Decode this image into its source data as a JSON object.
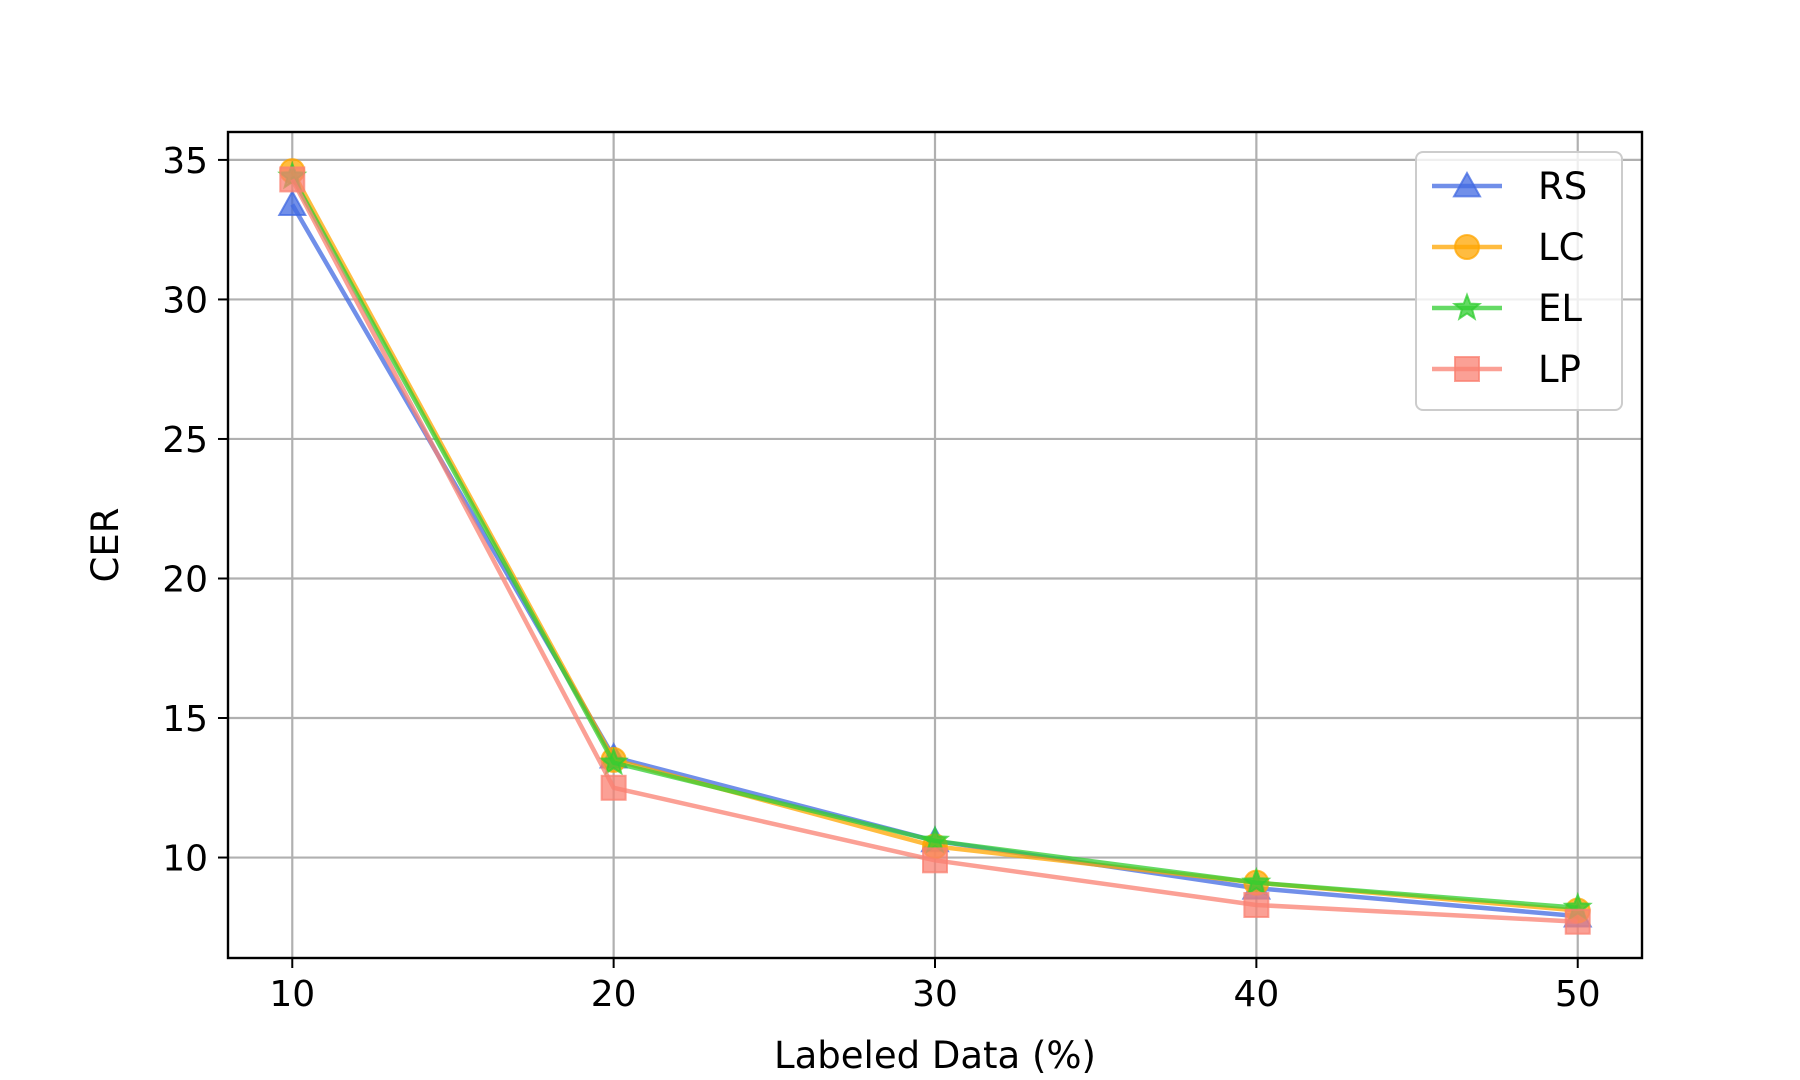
{
  "chart_data": {
    "type": "line",
    "title": "",
    "xlabel": "Labeled Data (%)",
    "ylabel": "CER",
    "x": [
      10,
      20,
      30,
      40,
      50
    ],
    "xticks": [
      "10",
      "20",
      "30",
      "40",
      "50"
    ],
    "yticks": [
      "10",
      "15",
      "20",
      "25",
      "30",
      "35"
    ],
    "xlim": [
      8,
      52
    ],
    "ylim": [
      6.4,
      36
    ],
    "grid": true,
    "legend_position": "top-right",
    "series": [
      {
        "name": "RS",
        "marker": "triangle",
        "color": "#4169e1",
        "values": [
          33.4,
          13.6,
          10.6,
          8.9,
          7.9
        ]
      },
      {
        "name": "LC",
        "marker": "circle",
        "color": "#ffa500",
        "values": [
          34.6,
          13.5,
          10.4,
          9.1,
          8.1
        ]
      },
      {
        "name": "EL",
        "marker": "star",
        "color": "#32cd32",
        "values": [
          34.4,
          13.4,
          10.6,
          9.1,
          8.2
        ]
      },
      {
        "name": "LP",
        "marker": "square",
        "color": "#fa8072",
        "values": [
          34.3,
          12.5,
          9.9,
          8.3,
          7.7
        ]
      }
    ]
  }
}
